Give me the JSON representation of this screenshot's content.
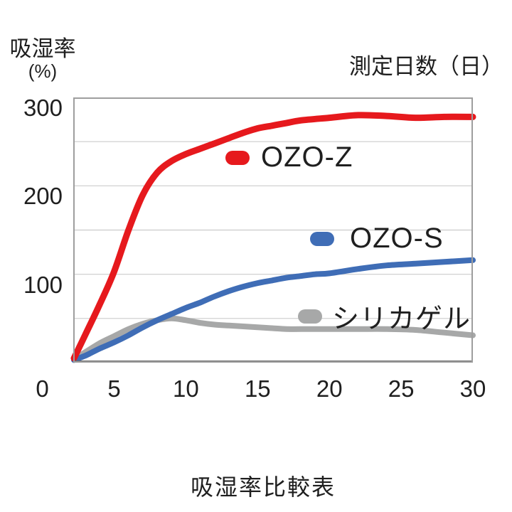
{
  "colors": {
    "background": "#ffffff",
    "text": "#1f1f1f",
    "plot_border": "#9e9e9e",
    "plot_bottom_border": "#686868",
    "gridline": "#cbcbcb",
    "ozo_z": "#e6191d",
    "ozo_s": "#3f6db6",
    "silica_gel": "#a7a8a8"
  },
  "y_axis": {
    "title": "吸湿率",
    "unit": "(%)"
  },
  "x_axis": {
    "title": "測定日数（日）"
  },
  "caption": "吸湿率比較表",
  "chart_data": {
    "type": "line",
    "title": "吸湿率比較表",
    "xlabel": "測定日数（日）",
    "ylabel": "吸湿率 (%)",
    "xlim": [
      2,
      30
    ],
    "ylim": [
      0,
      300
    ],
    "x_ticks": [
      0,
      5,
      10,
      15,
      20,
      25,
      30
    ],
    "y_ticks": [
      0,
      100,
      200,
      300
    ],
    "gridline_values": [
      50,
      100,
      150,
      200,
      250
    ],
    "grid": "horizontal-only",
    "legend_position": "inside",
    "series": [
      {
        "key": "ozo-z",
        "name": "OZO-Z",
        "color": "#e6191d",
        "line_width": 9,
        "points": [
          [
            2.2,
            5
          ],
          [
            3,
            32
          ],
          [
            4,
            66
          ],
          [
            5,
            103
          ],
          [
            6,
            150
          ],
          [
            7,
            190
          ],
          [
            8,
            215
          ],
          [
            9,
            228
          ],
          [
            10,
            236
          ],
          [
            11,
            242
          ],
          [
            12,
            248
          ],
          [
            13,
            254
          ],
          [
            14,
            260
          ],
          [
            15,
            265
          ],
          [
            16,
            268
          ],
          [
            17,
            271
          ],
          [
            18,
            274
          ],
          [
            20,
            277
          ],
          [
            22,
            280
          ],
          [
            24,
            279
          ],
          [
            26,
            277
          ],
          [
            28,
            278
          ],
          [
            30,
            278
          ]
        ]
      },
      {
        "key": "ozo-s",
        "name": "OZO-S",
        "color": "#3f6db6",
        "line_width": 8,
        "points": [
          [
            2.2,
            3
          ],
          [
            3,
            8
          ],
          [
            4,
            16
          ],
          [
            5,
            23
          ],
          [
            6,
            31
          ],
          [
            7,
            40
          ],
          [
            8,
            48
          ],
          [
            9,
            55
          ],
          [
            10,
            62
          ],
          [
            11,
            68
          ],
          [
            12,
            75
          ],
          [
            13,
            81
          ],
          [
            14,
            86
          ],
          [
            15,
            90
          ],
          [
            16,
            93
          ],
          [
            17,
            96
          ],
          [
            18,
            98
          ],
          [
            19,
            100
          ],
          [
            20,
            101
          ],
          [
            22,
            106
          ],
          [
            24,
            110
          ],
          [
            26,
            112
          ],
          [
            28,
            114
          ],
          [
            30,
            116
          ]
        ]
      },
      {
        "key": "silica-gel",
        "name": "シリカゲル",
        "color": "#a7a8a8",
        "line_width": 8,
        "points": [
          [
            2.2,
            4
          ],
          [
            3,
            12
          ],
          [
            4,
            22
          ],
          [
            5,
            30
          ],
          [
            6,
            38
          ],
          [
            7,
            44
          ],
          [
            8,
            48
          ],
          [
            9,
            50
          ],
          [
            10,
            48
          ],
          [
            11,
            45
          ],
          [
            12,
            43
          ],
          [
            13,
            42
          ],
          [
            14,
            41
          ],
          [
            15,
            40
          ],
          [
            16,
            39
          ],
          [
            17,
            38
          ],
          [
            18,
            38
          ],
          [
            20,
            38
          ],
          [
            22,
            38
          ],
          [
            24,
            38
          ],
          [
            26,
            37
          ],
          [
            28,
            34
          ],
          [
            30,
            31
          ]
        ]
      }
    ]
  }
}
